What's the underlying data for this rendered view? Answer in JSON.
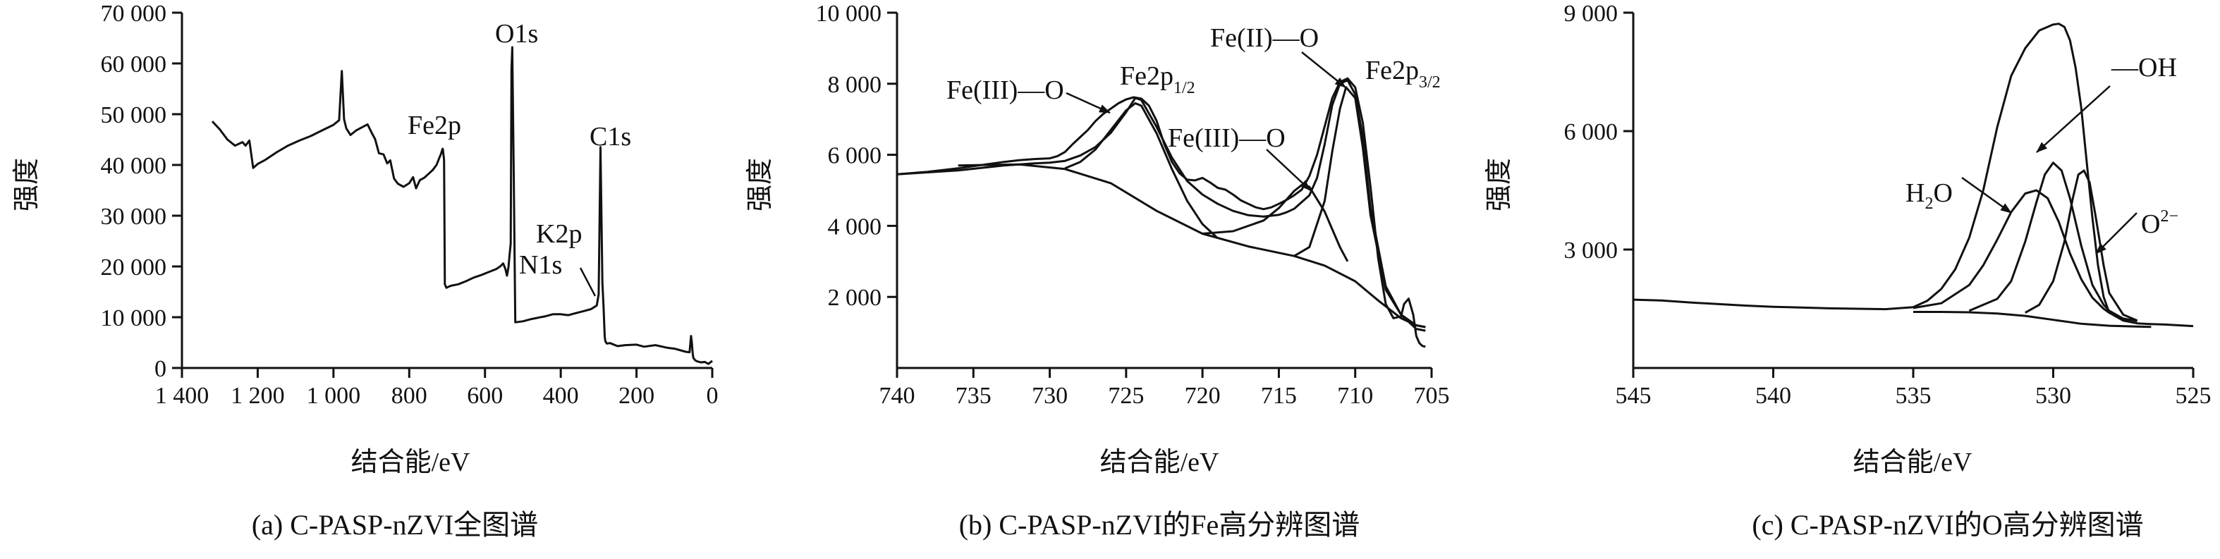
{
  "chart_data": [
    {
      "type": "line",
      "caption": "(a) C-PASP-nZVI全图谱",
      "xlabel": "结合能/eV",
      "ylabel": "强度",
      "xlim": [
        1400,
        0
      ],
      "ylim": [
        0,
        70000
      ],
      "xticks": [
        1400,
        1200,
        1000,
        800,
        600,
        400,
        200,
        0
      ],
      "xtick_labels": [
        "1 400",
        "1 200",
        "1 000",
        "800",
        "600",
        "400",
        "200",
        "0"
      ],
      "yticks": [
        0,
        10000,
        20000,
        30000,
        40000,
        50000,
        60000,
        70000
      ],
      "ytick_labels": [
        "0",
        "10 000",
        "20 000",
        "30 000",
        "40 000",
        "50 000",
        "60 000",
        "70 000"
      ],
      "series": [
        {
          "x": [
            1320,
            1300,
            1280,
            1260,
            1240,
            1232,
            1222,
            1212,
            1200,
            1180,
            1150,
            1120,
            1090,
            1060,
            1030,
            1000,
            985,
            978,
            972,
            966,
            955,
            940,
            925,
            910,
            898,
            890,
            880,
            868,
            858,
            850,
            840,
            830,
            815,
            800,
            790,
            782,
            772,
            760,
            748,
            738,
            728,
            720,
            716,
            712,
            711,
            708,
            706,
            702,
            690,
            670,
            650,
            630,
            610,
            590,
            570,
            560,
            552,
            546,
            542,
            538,
            535,
            532,
            530,
            528,
            524,
            520,
            500,
            480,
            460,
            440,
            420,
            400,
            380,
            360,
            340,
            320,
            305,
            300,
            295,
            290,
            287,
            284,
            282,
            278,
            270,
            250,
            230,
            200,
            180,
            150,
            120,
            100,
            80,
            70,
            60,
            56,
            54,
            52,
            50,
            48,
            45,
            40,
            30,
            20,
            10,
            0
          ],
          "y": [
            48600,
            47000,
            45000,
            43800,
            44500,
            43800,
            44800,
            39400,
            40200,
            41000,
            42500,
            43800,
            44800,
            45700,
            46800,
            47900,
            48800,
            58500,
            49000,
            47200,
            45900,
            46800,
            47400,
            48000,
            46200,
            45100,
            42300,
            42100,
            40300,
            40900,
            37300,
            36300,
            35700,
            36400,
            37600,
            35400,
            37000,
            37500,
            38300,
            39000,
            40000,
            41500,
            42200,
            43200,
            43000,
            41000,
            16500,
            15800,
            16200,
            16500,
            17100,
            17800,
            18300,
            18900,
            19500,
            20000,
            20600,
            19500,
            18200,
            19800,
            22300,
            24500,
            58800,
            63200,
            38000,
            9000,
            9200,
            9600,
            9900,
            10200,
            10600,
            10600,
            10400,
            10800,
            11200,
            11600,
            12300,
            14500,
            43500,
            16800,
            12200,
            6200,
            5200,
            4800,
            4900,
            4300,
            4500,
            4600,
            4200,
            4500,
            4000,
            3800,
            3400,
            3200,
            3100,
            6300,
            5100,
            3100,
            2000,
            1800,
            1500,
            1300,
            1100,
            1200,
            800,
            1400
          ]
        }
      ],
      "annotations": [
        {
          "text": "O1s"
        },
        {
          "text": "Fe2p"
        },
        {
          "text": "C1s"
        },
        {
          "text": "K2p"
        },
        {
          "text": "N1s"
        }
      ]
    },
    {
      "type": "line",
      "caption": "(b) C-PASP-nZVI的Fe高分辨图谱",
      "xlabel": "结合能/eV",
      "ylabel": "强度",
      "xlim": [
        740,
        705
      ],
      "ylim": [
        0,
        10000
      ],
      "xticks": [
        740,
        735,
        730,
        725,
        720,
        715,
        710,
        705
      ],
      "xtick_labels": [
        "740",
        "735",
        "730",
        "725",
        "720",
        "715",
        "710",
        "705"
      ],
      "yticks": [
        2000,
        4000,
        6000,
        8000,
        10000
      ],
      "ytick_labels": [
        "2 000",
        "4 000",
        "6 000",
        "8 000",
        "10 000"
      ],
      "series": [
        {
          "x": [
            740,
            738,
            736,
            734,
            733,
            732,
            731,
            730,
            729.5,
            729,
            728.5,
            728,
            727.5,
            727,
            726.5,
            726,
            725.5,
            725,
            724.5,
            724,
            723.5,
            723,
            722.5,
            722,
            721.5,
            721,
            720.5,
            720,
            719.5,
            719,
            718.5,
            718,
            717.5,
            717,
            716.5,
            716,
            715.5,
            715,
            714.5,
            714,
            713.5,
            713,
            712.5,
            712,
            711.5,
            711,
            710.5,
            710,
            709.5,
            709,
            708.5,
            708,
            707.5,
            707,
            706.8,
            706.5,
            706.2,
            706,
            705.8,
            705.6,
            705.4
          ],
          "y": [
            5450,
            5520,
            5620,
            5740,
            5800,
            5850,
            5880,
            5900,
            5960,
            6080,
            6300,
            6500,
            6700,
            6950,
            7150,
            7300,
            7450,
            7560,
            7620,
            7580,
            7380,
            6950,
            6300,
            5800,
            5480,
            5300,
            5280,
            5350,
            5220,
            5070,
            5020,
            4880,
            4720,
            4620,
            4520,
            4470,
            4520,
            4620,
            4730,
            4860,
            5020,
            5400,
            6000,
            6800,
            7600,
            8050,
            8150,
            7900,
            6900,
            5100,
            3100,
            1800,
            1400,
            1450,
            1800,
            1950,
            1500,
            900,
            700,
            620,
            600
          ]
        },
        {
          "x": [
            740,
            736,
            733,
            731,
            730,
            729,
            728,
            727,
            726,
            725,
            724.4,
            724,
            723,
            722,
            721,
            720,
            719,
            718,
            717,
            716,
            715,
            714.5,
            714,
            713,
            712.5,
            712,
            711.5,
            711,
            710.5,
            710,
            709.5,
            709,
            708,
            707,
            706,
            705.4
          ],
          "y": [
            5450,
            5560,
            5700,
            5760,
            5780,
            5830,
            5980,
            6220,
            6620,
            7200,
            7600,
            7540,
            6780,
            5920,
            5260,
            4880,
            4620,
            4420,
            4300,
            4260,
            4310,
            4380,
            4480,
            4860,
            5350,
            6300,
            7400,
            8000,
            8100,
            7700,
            6500,
            4500,
            2300,
            1500,
            1100,
            1050
          ]
        },
        {
          "x": [
            736,
            732,
            729,
            726,
            723,
            720,
            717,
            714,
            712,
            710,
            708.5,
            707,
            706,
            705.4
          ],
          "y": [
            5700,
            5730,
            5600,
            5200,
            4420,
            3780,
            3420,
            3150,
            2880,
            2440,
            1900,
            1400,
            1200,
            1150
          ]
        },
        {
          "x": [
            729,
            728,
            727,
            726,
            725,
            724.4,
            724,
            723,
            722,
            721,
            720,
            719
          ],
          "y": [
            5620,
            5800,
            6150,
            6700,
            7250,
            7450,
            7380,
            6600,
            5600,
            4700,
            4050,
            3650
          ]
        },
        {
          "x": [
            720,
            718,
            716,
            715,
            714,
            713.5,
            713,
            712,
            711.5,
            711,
            710.5
          ],
          "y": [
            3780,
            3850,
            4150,
            4500,
            4980,
            5150,
            5100,
            4400,
            3900,
            3400,
            3000
          ]
        },
        {
          "x": [
            714,
            713,
            712,
            711.5,
            711,
            710.6,
            710,
            709.5,
            709,
            708,
            707,
            706,
            705.4
          ],
          "y": [
            3150,
            3400,
            4700,
            6100,
            7300,
            7900,
            7600,
            6200,
            4300,
            2200,
            1500,
            1200,
            1150
          ]
        }
      ],
      "annotations": [
        {
          "text": "Fe(III)—O"
        },
        {
          "text": "Fe2p",
          "sub": "1/2"
        },
        {
          "text": "Fe(III)—O"
        },
        {
          "text": "Fe(II)—O"
        },
        {
          "text": "Fe2p",
          "sub": "3/2"
        }
      ]
    },
    {
      "type": "line",
      "caption": "(c) C-PASP-nZVI的O高分辨图谱",
      "xlabel": "结合能/eV",
      "ylabel": "强度",
      "xlim": [
        545,
        525
      ],
      "ylim": [
        0,
        9000
      ],
      "xticks": [
        545,
        540,
        535,
        530,
        525
      ],
      "xtick_labels": [
        "545",
        "540",
        "535",
        "530",
        "525"
      ],
      "yticks": [
        3000,
        6000,
        9000
      ],
      "ytick_labels": [
        "3 000",
        "6 000",
        "9 000"
      ],
      "series": [
        {
          "color": "#000000",
          "x": [
            545,
            544,
            543,
            542,
            541,
            540,
            539,
            538,
            537,
            536,
            535,
            534.5,
            534,
            533.5,
            533,
            532.5,
            532,
            531.5,
            531,
            530.5,
            530,
            529.8,
            529.6,
            529.4,
            529.2,
            529,
            528.8,
            528.6,
            528.4,
            528.2,
            528,
            527.5,
            527,
            526.5,
            526,
            525.5,
            525
          ],
          "y": [
            1730,
            1710,
            1660,
            1620,
            1580,
            1550,
            1530,
            1510,
            1500,
            1490,
            1540,
            1700,
            2000,
            2500,
            3300,
            4500,
            6100,
            7400,
            8100,
            8550,
            8700,
            8720,
            8640,
            8300,
            7600,
            6600,
            5200,
            3800,
            2600,
            1800,
            1400,
            1200,
            1130,
            1110,
            1100,
            1080,
            1060
          ]
        },
        {
          "color": "#000000",
          "x": [
            535,
            534,
            533,
            532.5,
            532,
            531.5,
            531,
            530.6,
            530.2,
            529.8,
            529.4,
            529,
            528.6,
            528.2,
            528,
            527.5,
            527
          ],
          "y": [
            1520,
            1640,
            2100,
            2600,
            3250,
            3950,
            4420,
            4500,
            4300,
            3700,
            2900,
            2250,
            1780,
            1500,
            1400,
            1250,
            1190
          ]
        },
        {
          "color": "#000000",
          "x": [
            533,
            532,
            531.5,
            531,
            530.6,
            530.3,
            530,
            529.7,
            529.4,
            529,
            528.6,
            528.2,
            528,
            527.5,
            527
          ],
          "y": [
            1450,
            1750,
            2200,
            3200,
            4200,
            4900,
            5200,
            5000,
            4300,
            3100,
            2100,
            1600,
            1450,
            1250,
            1190
          ]
        },
        {
          "color": "#000000",
          "x": [
            531,
            530.5,
            530,
            529.6,
            529.3,
            529.1,
            528.9,
            528.7,
            528.5,
            528.2,
            528,
            527.5,
            527
          ],
          "y": [
            1400,
            1600,
            2200,
            3200,
            4300,
            4900,
            5000,
            4700,
            3900,
            2600,
            1900,
            1350,
            1200
          ]
        },
        {
          "color": "#2e8b2e",
          "x": [
            535,
            534,
            533,
            532,
            531,
            530,
            529,
            528,
            527,
            526.5
          ],
          "y": [
            1420,
            1420,
            1410,
            1380,
            1320,
            1220,
            1120,
            1070,
            1050,
            1040
          ]
        }
      ],
      "annotations": [
        {
          "text": "H",
          "sub": "2",
          "text_after": "O"
        },
        {
          "text": "—OH"
        },
        {
          "text": "O",
          "sup": "2−"
        }
      ]
    }
  ]
}
